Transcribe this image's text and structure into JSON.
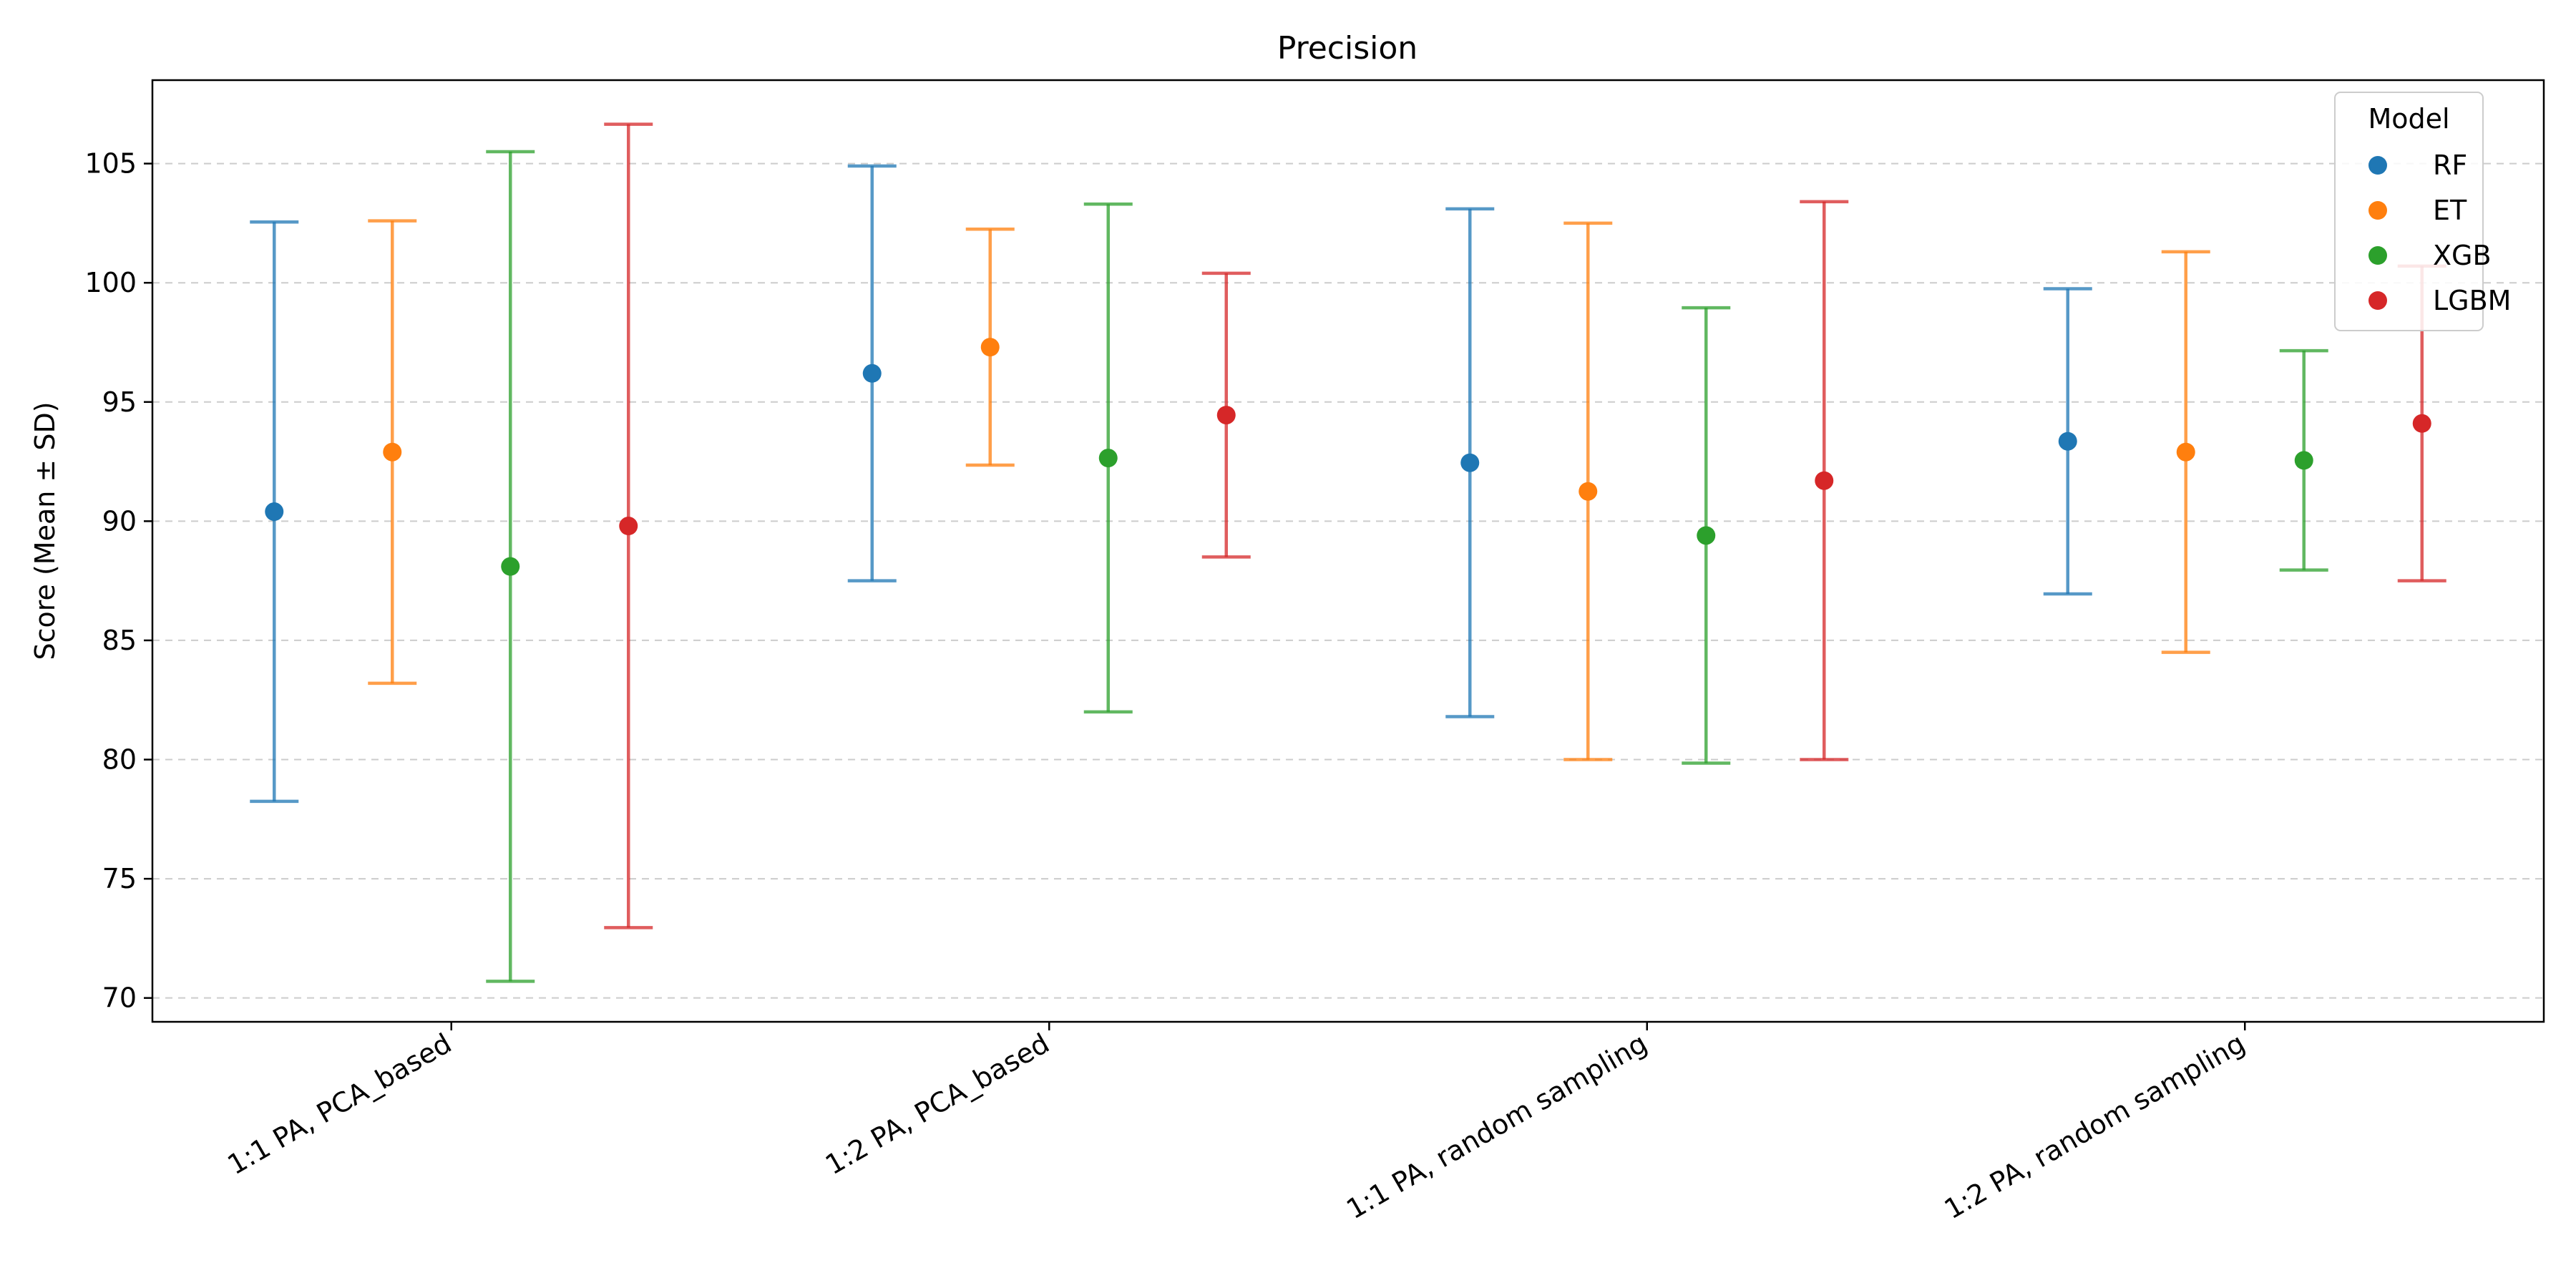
{
  "chart_data": {
    "type": "errorbar",
    "title": "Precision",
    "xlabel": "",
    "ylabel": "Score (Mean ± SD)",
    "ylim": [
      69,
      108.5
    ],
    "yticks": [
      70,
      75,
      80,
      85,
      90,
      95,
      100,
      105
    ],
    "grid": "horizontal dashed",
    "categories": [
      "1:1 PA, PCA_based",
      "1:2 PA, PCA_based",
      "1:1 PA, random sampling",
      "1:2 PA, random sampling"
    ],
    "legend": {
      "title": "Model",
      "position": "top-right"
    },
    "series": [
      {
        "name": "RF",
        "color": "#1f77b4",
        "mean": [
          90.4,
          96.2,
          92.45,
          93.35
        ],
        "sd": [
          12.15,
          8.7,
          10.65,
          6.4
        ]
      },
      {
        "name": "ET",
        "color": "#ff7f0e",
        "mean": [
          92.9,
          97.3,
          91.25,
          92.9
        ],
        "sd": [
          9.7,
          4.95,
          11.25,
          8.4
        ]
      },
      {
        "name": "XGB",
        "color": "#2ca02c",
        "mean": [
          88.1,
          92.65,
          89.4,
          92.55
        ],
        "sd": [
          17.4,
          10.65,
          9.55,
          4.6
        ]
      },
      {
        "name": "LGBM",
        "color": "#d62728",
        "mean": [
          89.8,
          94.45,
          91.7,
          94.1
        ],
        "sd": [
          16.85,
          5.95,
          11.7,
          6.6
        ]
      }
    ]
  }
}
